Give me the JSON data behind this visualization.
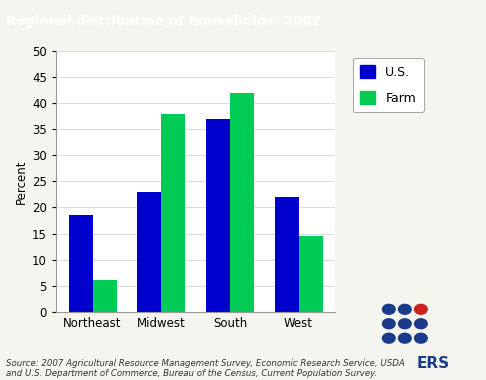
{
  "title": "Regional distribution of households, 2007",
  "title_bg_color": "#0d2d5a",
  "title_text_color": "#ffffff",
  "ylabel": "Percent",
  "categories": [
    "Northeast",
    "Midwest",
    "South",
    "West"
  ],
  "us_values": [
    18.5,
    23.0,
    37.0,
    22.0
  ],
  "farm_values": [
    6.0,
    38.0,
    42.0,
    14.5
  ],
  "us_color": "#0000cc",
  "farm_color": "#00cc55",
  "ylim": [
    0,
    50
  ],
  "yticks": [
    0,
    5,
    10,
    15,
    20,
    25,
    30,
    35,
    40,
    45,
    50
  ],
  "legend_labels": [
    "U.S.",
    "Farm"
  ],
  "source_text": "Source: 2007 Agricultural Resource Management Survey, Economic Research Service, USDA\nand U.S. Department of Commerce, Bureau of the Census, Current Population Survey.",
  "plot_bg_color": "#ffffff",
  "outer_bg_color": "#f5f5f0",
  "bar_width": 0.35,
  "ers_dot_color": "#1a3a8a",
  "ers_leaf_color": "#cc2222",
  "ers_text_color": "#1a3a8a"
}
